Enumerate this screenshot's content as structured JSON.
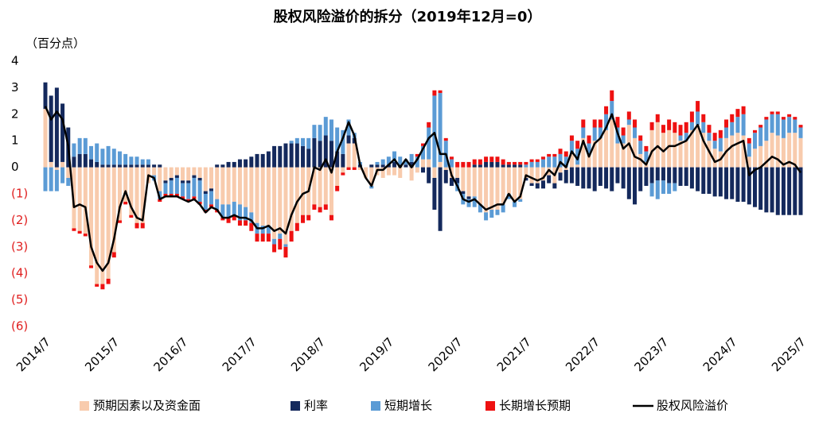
{
  "chart_data": {
    "type": "bar",
    "title": "股权风险溢价的拆分（2019年12月=0）",
    "y_unit": "（百分点）",
    "categories": [
      "2014/7",
      null,
      null,
      null,
      null,
      null,
      null,
      null,
      null,
      null,
      null,
      null,
      "2015/7",
      null,
      null,
      null,
      null,
      null,
      null,
      null,
      null,
      null,
      null,
      null,
      "2016/7",
      null,
      null,
      null,
      null,
      null,
      null,
      null,
      null,
      null,
      null,
      null,
      "2017/7",
      null,
      null,
      null,
      null,
      null,
      null,
      null,
      null,
      null,
      null,
      null,
      "2018/7",
      null,
      null,
      null,
      null,
      null,
      null,
      null,
      null,
      null,
      null,
      null,
      "2019/7",
      null,
      null,
      null,
      null,
      null,
      null,
      null,
      null,
      null,
      null,
      null,
      "2020/7",
      null,
      null,
      null,
      null,
      null,
      null,
      null,
      null,
      null,
      null,
      null,
      "2021/7",
      null,
      null,
      null,
      null,
      null,
      null,
      null,
      null,
      null,
      null,
      null,
      "2022/7",
      null,
      null,
      null,
      null,
      null,
      null,
      null,
      null,
      null,
      null,
      null,
      "2023/7",
      null,
      null,
      null,
      null,
      null,
      null,
      null,
      null,
      null,
      null,
      null,
      "2024/7",
      null,
      null,
      null,
      null,
      null,
      null,
      null,
      null,
      null,
      null,
      null,
      "2025/7"
    ],
    "ylim": [
      -6,
      4
    ],
    "yticks": [
      4,
      3,
      2,
      1,
      0,
      {
        "value": -1,
        "label": "(1)"
      },
      {
        "value": -2,
        "label": "(2)"
      },
      {
        "value": -3,
        "label": "(3)"
      },
      {
        "value": -4,
        "label": "(4)"
      },
      {
        "value": -5,
        "label": "(5)"
      },
      {
        "value": -6,
        "label": "(6)"
      }
    ],
    "negative_tick_color": "#e02020",
    "grid": false,
    "legend": "bottom",
    "series": [
      {
        "name": "预期因素以及资金面",
        "type": "bar",
        "color": "#f8cbad",
        "values": [
          2.2,
          0.2,
          -0.1,
          0.2,
          -0.4,
          -2.3,
          -2.4,
          -2.5,
          -3.7,
          -4.4,
          -4.4,
          -4.2,
          -3.2,
          -2.0,
          -1.3,
          -1.8,
          -2.1,
          -2.1,
          -0.6,
          -0.3,
          -0.9,
          -0.5,
          -0.4,
          -0.3,
          -0.5,
          -0.5,
          -0.3,
          -0.4,
          -0.9,
          -0.8,
          -1.2,
          -1.4,
          -1.4,
          -1.3,
          -1.4,
          -1.5,
          -1.7,
          -2.1,
          -2.2,
          -2.2,
          -2.7,
          -2.5,
          -2.9,
          -2.4,
          -2.1,
          -1.8,
          -1.8,
          -1.4,
          -1.5,
          -1.4,
          -1.8,
          -0.7,
          -0.2,
          0.9,
          0.9,
          -0.1,
          -0.4,
          -0.7,
          -0.3,
          -0.4,
          -0.3,
          -0.3,
          -0.4,
          0.0,
          -0.5,
          -0.2,
          0.3,
          0.3,
          -0.4,
          0.2,
          -0.1,
          -0.4,
          -0.4,
          -0.9,
          -1.1,
          -1.1,
          -1.4,
          -1.7,
          -1.6,
          -1.6,
          -1.4,
          -1.0,
          -1.3,
          -1.2,
          -0.4,
          -0.6,
          -0.6,
          -0.5,
          -0.3,
          -0.6,
          -0.2,
          -0.1,
          0.5,
          0.1,
          1.1,
          0.5,
          1.0,
          1.1,
          1.4,
          1.8,
          0.9,
          0.9,
          1.6,
          1.1,
          0.5,
          0.2,
          1.4,
          1.7,
          1.3,
          1.4,
          1.3,
          1.0,
          1.0,
          1.4,
          1.6,
          1.3,
          1.0,
          0.7,
          0.6,
          1.1,
          1.2,
          1.3,
          1.2,
          0.4,
          0.7,
          0.8,
          1.0,
          1.3,
          1.2,
          1.1,
          1.3,
          1.3,
          1.1
        ]
      },
      {
        "name": "利率",
        "type": "bar",
        "color": "#14295c",
        "values": [
          1.0,
          2.5,
          3.0,
          2.2,
          1.5,
          0.4,
          0.5,
          0.5,
          0.3,
          0.2,
          0.1,
          0.1,
          0.1,
          0.1,
          0.1,
          0.1,
          0.1,
          0.1,
          0.1,
          0.1,
          0.1,
          -0.1,
          -0.1,
          -0.1,
          -0.1,
          -0.1,
          -0.1,
          -0.1,
          -0.1,
          -0.1,
          0.1,
          0.1,
          0.2,
          0.2,
          0.3,
          0.3,
          0.4,
          0.5,
          0.5,
          0.6,
          0.8,
          0.8,
          0.9,
          0.9,
          0.9,
          0.8,
          0.7,
          1.1,
          1.0,
          1.2,
          1.0,
          0.6,
          0.5,
          0.3,
          0.2,
          0.1,
          0.0,
          0.1,
          0.1,
          0.1,
          0.1,
          0.2,
          0.1,
          0.1,
          0.2,
          0.0,
          -0.2,
          -0.6,
          -1.2,
          -2.4,
          -0.5,
          -0.3,
          -0.2,
          -0.1,
          -0.1,
          0.1,
          0.1,
          0.2,
          0.2,
          0.2,
          0.1,
          0.1,
          0.1,
          0.1,
          -0.1,
          -0.1,
          -0.2,
          -0.3,
          -0.3,
          -0.2,
          -0.3,
          -0.5,
          -0.6,
          -0.7,
          -0.8,
          -0.8,
          -0.9,
          -0.7,
          -0.8,
          -0.9,
          -0.6,
          -0.8,
          -1.2,
          -1.4,
          -0.9,
          -0.7,
          -0.6,
          -0.5,
          -0.5,
          -0.6,
          -0.6,
          -0.7,
          -0.7,
          -0.8,
          -0.9,
          -1.0,
          -1.0,
          -1.1,
          -1.1,
          -1.2,
          -1.2,
          -1.3,
          -1.3,
          -1.4,
          -1.5,
          -1.6,
          -1.7,
          -1.7,
          -1.8,
          -1.8,
          -1.8,
          -1.8,
          -1.8
        ]
      },
      {
        "name": "短期增长",
        "type": "bar",
        "color": "#5b9bd5",
        "values": [
          -0.9,
          -0.9,
          -0.8,
          -0.6,
          -0.3,
          0.5,
          0.6,
          0.6,
          0.5,
          0.7,
          0.6,
          0.7,
          0.6,
          0.5,
          0.4,
          0.3,
          0.3,
          0.2,
          0.2,
          -0.2,
          -0.3,
          -0.4,
          -0.5,
          -0.6,
          -0.5,
          -0.6,
          -0.7,
          -0.8,
          -0.6,
          -0.5,
          -0.4,
          -0.5,
          -0.5,
          -0.5,
          -0.6,
          -0.5,
          -0.4,
          -0.4,
          -0.3,
          -0.3,
          -0.2,
          -0.2,
          -0.1,
          0.1,
          0.2,
          0.3,
          0.4,
          0.5,
          0.6,
          0.7,
          0.8,
          0.9,
          0.9,
          0.6,
          0.2,
          0.1,
          0.0,
          -0.1,
          0.1,
          0.2,
          0.3,
          0.4,
          0.3,
          0.2,
          0.3,
          0.4,
          0.5,
          1.2,
          2.7,
          2.6,
          1.0,
          0.3,
          -0.3,
          -0.4,
          -0.3,
          -0.4,
          -0.3,
          -0.3,
          -0.3,
          -0.2,
          -0.3,
          -0.2,
          -0.2,
          -0.1,
          0.1,
          0.2,
          0.2,
          0.3,
          0.4,
          0.4,
          0.5,
          0.4,
          0.5,
          0.6,
          0.4,
          0.4,
          0.5,
          0.4,
          0.6,
          0.7,
          0.6,
          0.3,
          0.2,
          0.4,
          0.5,
          0.4,
          -0.5,
          -0.7,
          -0.5,
          -0.4,
          -0.3,
          0.2,
          0.3,
          0.3,
          0.5,
          0.4,
          0.3,
          0.3,
          0.5,
          0.4,
          0.5,
          0.6,
          0.8,
          0.5,
          0.6,
          0.7,
          0.8,
          0.7,
          0.8,
          0.7,
          0.6,
          0.5,
          0.4
        ]
      },
      {
        "name": "长期增长预期",
        "type": "bar",
        "color": "#ee1111",
        "values": [
          0.0,
          0.0,
          0.0,
          0.0,
          0.0,
          -0.1,
          -0.1,
          -0.1,
          -0.1,
          -0.1,
          -0.2,
          -0.2,
          -0.2,
          -0.1,
          -0.1,
          -0.1,
          -0.2,
          -0.2,
          0.0,
          0.0,
          -0.1,
          -0.1,
          -0.1,
          -0.1,
          -0.1,
          -0.1,
          -0.1,
          -0.1,
          -0.1,
          -0.1,
          -0.1,
          -0.1,
          -0.2,
          -0.2,
          -0.2,
          -0.2,
          -0.3,
          -0.3,
          -0.3,
          -0.3,
          -0.3,
          -0.4,
          -0.4,
          -0.4,
          -0.3,
          -0.3,
          -0.2,
          -0.2,
          -0.2,
          -0.2,
          -0.2,
          -0.2,
          -0.1,
          -0.1,
          -0.1,
          0.0,
          0.0,
          0.0,
          0.0,
          0.0,
          0.0,
          0.0,
          0.0,
          0.0,
          0.0,
          0.1,
          0.1,
          0.2,
          0.2,
          0.1,
          0.1,
          0.1,
          0.2,
          0.2,
          0.2,
          0.2,
          0.2,
          0.2,
          0.2,
          0.2,
          0.2,
          0.1,
          0.1,
          0.1,
          0.1,
          0.1,
          0.1,
          0.1,
          0.1,
          0.1,
          0.2,
          0.2,
          0.2,
          0.3,
          0.3,
          0.3,
          0.3,
          0.3,
          0.3,
          0.4,
          0.4,
          0.3,
          0.3,
          0.3,
          0.2,
          0.2,
          0.3,
          0.3,
          0.3,
          0.4,
          0.4,
          0.4,
          0.4,
          0.4,
          0.4,
          0.3,
          0.3,
          0.3,
          0.3,
          0.3,
          0.3,
          0.3,
          0.3,
          0.2,
          0.1,
          0.1,
          0.1,
          0.1,
          0.1,
          0.1,
          0.1,
          0.1,
          0.1
        ]
      },
      {
        "name": "股权风险溢价",
        "type": "line",
        "color": "#000000",
        "values": [
          2.3,
          1.8,
          2.1,
          1.8,
          0.8,
          -1.5,
          -1.4,
          -1.5,
          -3.0,
          -3.6,
          -3.9,
          -3.6,
          -2.7,
          -1.5,
          -0.9,
          -1.5,
          -1.9,
          -2.0,
          -0.3,
          -0.4,
          -1.2,
          -1.1,
          -1.1,
          -1.1,
          -1.2,
          -1.3,
          -1.2,
          -1.4,
          -1.7,
          -1.5,
          -1.6,
          -1.9,
          -1.9,
          -1.8,
          -1.9,
          -1.9,
          -2.0,
          -2.3,
          -2.3,
          -2.2,
          -2.4,
          -2.3,
          -2.5,
          -1.8,
          -1.3,
          -1.0,
          -0.9,
          0.0,
          -0.1,
          0.3,
          -0.2,
          0.6,
          1.1,
          1.7,
          1.2,
          0.1,
          -0.4,
          -0.7,
          -0.1,
          -0.1,
          0.1,
          0.3,
          0.0,
          0.3,
          0.0,
          0.3,
          0.7,
          1.1,
          1.3,
          0.5,
          0.5,
          -0.3,
          -0.7,
          -1.2,
          -1.3,
          -1.2,
          -1.4,
          -1.6,
          -1.5,
          -1.4,
          -1.4,
          -1.0,
          -1.3,
          -1.1,
          -0.3,
          -0.4,
          -0.5,
          -0.4,
          -0.1,
          -0.3,
          0.2,
          0.0,
          0.6,
          0.3,
          1.0,
          0.4,
          0.9,
          1.1,
          1.5,
          2.0,
          1.3,
          0.7,
          0.9,
          0.4,
          0.3,
          0.1,
          0.6,
          0.8,
          0.6,
          0.8,
          0.8,
          0.9,
          1.0,
          1.3,
          1.6,
          1.0,
          0.6,
          0.2,
          0.3,
          0.6,
          0.8,
          0.9,
          1.0,
          -0.3,
          -0.1,
          0.0,
          0.2,
          0.4,
          0.3,
          0.1,
          0.2,
          0.1,
          -0.2
        ]
      }
    ]
  }
}
